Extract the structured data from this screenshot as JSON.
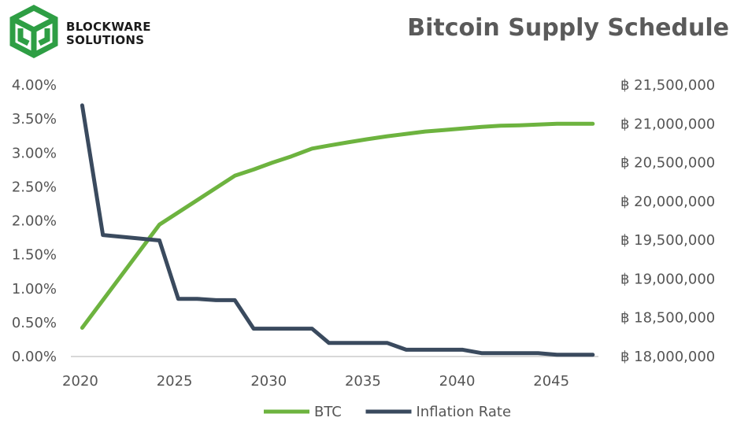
{
  "header": {
    "brand_line1": "BLOCKWARE",
    "brand_line2": "SOLUTIONS",
    "title": "Bitcoin Supply Schedule"
  },
  "colors": {
    "btc": "#6db33f",
    "inflation": "#3a4a5e",
    "logo": "#2e9e44",
    "axis": "#cccccc",
    "text": "#555555"
  },
  "chart_data": {
    "type": "line",
    "title": "Bitcoin Supply Schedule",
    "x_ticks": [
      2020,
      2025,
      2030,
      2035,
      2040,
      2045
    ],
    "xlim": [
      2019.5,
      2047.5
    ],
    "y_left": {
      "ticks": [
        "0.00%",
        "0.50%",
        "1.00%",
        "1.50%",
        "2.00%",
        "2.50%",
        "3.00%",
        "3.50%",
        "4.00%"
      ],
      "lim": [
        0,
        4
      ]
    },
    "y_right": {
      "ticks": [
        "฿ 18,000,000",
        "฿ 18,500,000",
        "฿ 19,000,000",
        "฿ 19,500,000",
        "฿ 20,000,000",
        "฿ 20,500,000",
        "฿ 21,000,000",
        "฿ 21,500,000"
      ],
      "lim": [
        18000000,
        21500000
      ]
    },
    "legend_position": "bottom",
    "grid": false,
    "series": [
      {
        "name": "BTC",
        "axis": "right",
        "x": [
          2020.1,
          2024.2,
          2028.2,
          2029.2,
          2030.2,
          2031.2,
          2032.3,
          2033.2,
          2034.2,
          2035.2,
          2036.3,
          2037.3,
          2038.3,
          2039.3,
          2040.3,
          2041.3,
          2042.3,
          2043.3,
          2044.3,
          2045.3,
          2046.3,
          2047.2
        ],
        "y": [
          18370000,
          19700000,
          20330000,
          20410000,
          20500000,
          20580000,
          20680000,
          20720000,
          20760000,
          20800000,
          20840000,
          20870000,
          20900000,
          20920000,
          20940000,
          20960000,
          20975000,
          20980000,
          20990000,
          21000000,
          21000000,
          21000000
        ]
      },
      {
        "name": "Inflation Rate",
        "axis": "left",
        "x": [
          2020.1,
          2021.2,
          2024.2,
          2025.2,
          2026.2,
          2027.2,
          2028.2,
          2029.2,
          2030.2,
          2031.2,
          2032.3,
          2033.2,
          2034.2,
          2035.2,
          2036.3,
          2037.3,
          2038.3,
          2039.3,
          2040.3,
          2041.3,
          2042.3,
          2043.3,
          2044.3,
          2045.3,
          2046.3,
          2047.2
        ],
        "y": [
          3.7,
          1.79,
          1.71,
          0.85,
          0.85,
          0.83,
          0.83,
          0.41,
          0.41,
          0.41,
          0.41,
          0.2,
          0.2,
          0.2,
          0.2,
          0.1,
          0.1,
          0.1,
          0.1,
          0.05,
          0.05,
          0.05,
          0.05,
          0.025,
          0.025,
          0.025
        ]
      }
    ]
  }
}
